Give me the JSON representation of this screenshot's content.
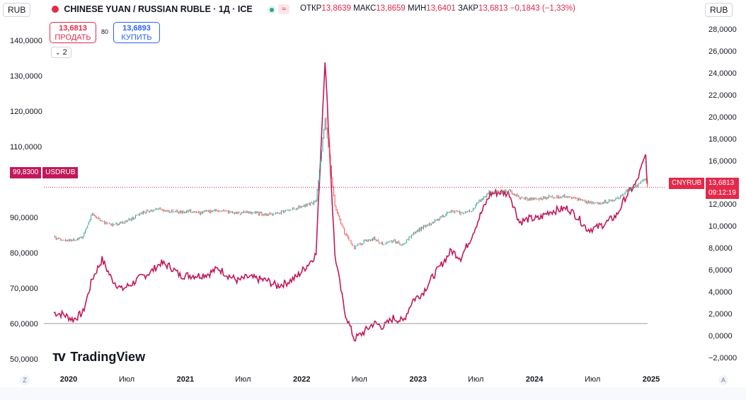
{
  "header": {
    "currency_left": "RUB",
    "symbol": "CHINESE YUAN / RUSSIAN RUBLE · 1Д · ICE",
    "open_label": "ОТКР",
    "open_value": "13,8639",
    "high_label": "МАКС",
    "high_value": "13,8659",
    "low_label": "МИН",
    "low_value": "13,6401",
    "close_label": "ЗАКР",
    "close_value": "13,6813",
    "change_value": "−0,1843 (−1,33%)",
    "currency_right": "RUB"
  },
  "trade": {
    "sell_price": "13,6813",
    "sell_label": "ПРОДАТЬ",
    "spread": "80",
    "buy_price": "13,6893",
    "buy_label": "КУПИТЬ",
    "indicator_count": "2"
  },
  "badges": {
    "usdrub_value": "99,8300",
    "usdrub_symbol": "USDRUB",
    "cnyrub_symbol": "CNYRUB",
    "cnyrub_value": "13,6813",
    "cnyrub_timer": "09:12:19"
  },
  "watermark": "TradingView",
  "footer": {
    "z": "Z",
    "a": "A"
  },
  "chart_data": {
    "type": "line",
    "x_ticks": [
      "2020",
      "Июл",
      "2021",
      "Июл",
      "2022",
      "Июл",
      "2023",
      "Июл",
      "2024",
      "Июл",
      "2025"
    ],
    "left_axis_ticks": [
      "140,0000",
      "130,0000",
      "120,0000",
      "110,0000",
      "90,0000",
      "80,0000",
      "70,0000",
      "60,0000",
      "50,0000"
    ],
    "right_axis_ticks": [
      "28,0000",
      "26,0000",
      "24,0000",
      "22,0000",
      "20,0000",
      "18,0000",
      "16,0000",
      "14,0000",
      "12,0000",
      "10,0000",
      "8,0000",
      "6,0000",
      "4,0000",
      "2,0000",
      "0,0000",
      "−2,0000"
    ],
    "left_axis_range": [
      47,
      143
    ],
    "right_axis_range": [
      -2.5,
      28.5
    ],
    "series": [
      {
        "name": "USDRUB",
        "axis": "left",
        "color": "#c2185b",
        "points": [
          [
            "2019-11",
            63.5
          ],
          [
            "2019-12",
            63.0
          ],
          [
            "2020-01",
            61.5
          ],
          [
            "2020-02",
            63.5
          ],
          [
            "2020-03",
            73.0
          ],
          [
            "2020-04",
            78.5
          ],
          [
            "2020-05",
            73.0
          ],
          [
            "2020-06",
            70.0
          ],
          [
            "2020-07",
            71.5
          ],
          [
            "2020-08",
            73.5
          ],
          [
            "2020-09",
            75.0
          ],
          [
            "2020-10",
            77.5
          ],
          [
            "2020-11",
            76.5
          ],
          [
            "2020-12",
            74.0
          ],
          [
            "2021-01",
            74.0
          ],
          [
            "2021-02",
            74.0
          ],
          [
            "2021-03",
            74.5
          ],
          [
            "2021-04",
            76.0
          ],
          [
            "2021-05",
            74.0
          ],
          [
            "2021-06",
            72.5
          ],
          [
            "2021-07",
            73.5
          ],
          [
            "2021-08",
            73.0
          ],
          [
            "2021-09",
            72.5
          ],
          [
            "2021-10",
            71.0
          ],
          [
            "2021-11",
            72.0
          ],
          [
            "2021-12",
            73.5
          ],
          [
            "2022-01",
            76.5
          ],
          [
            "2022-02",
            80.0
          ],
          [
            "2022-03",
            135.0
          ],
          [
            "2022-04",
            80.0
          ],
          [
            "2022-05",
            64.0
          ],
          [
            "2022-06",
            56.0
          ],
          [
            "2022-07",
            58.0
          ],
          [
            "2022-08",
            60.5
          ],
          [
            "2022-09",
            59.5
          ],
          [
            "2022-10",
            62.0
          ],
          [
            "2022-11",
            61.0
          ],
          [
            "2022-12",
            67.0
          ],
          [
            "2023-01",
            69.0
          ],
          [
            "2023-02",
            73.5
          ],
          [
            "2023-03",
            77.0
          ],
          [
            "2023-04",
            81.0
          ],
          [
            "2023-05",
            79.0
          ],
          [
            "2023-06",
            84.5
          ],
          [
            "2023-07",
            91.0
          ],
          [
            "2023-08",
            97.0
          ],
          [
            "2023-09",
            97.5
          ],
          [
            "2023-10",
            97.0
          ],
          [
            "2023-11",
            89.0
          ],
          [
            "2023-12",
            90.0
          ],
          [
            "2024-01",
            90.0
          ],
          [
            "2024-02",
            92.0
          ],
          [
            "2024-03",
            92.5
          ],
          [
            "2024-04",
            93.0
          ],
          [
            "2024-05",
            90.5
          ],
          [
            "2024-06",
            87.0
          ],
          [
            "2024-07",
            87.5
          ],
          [
            "2024-08",
            89.0
          ],
          [
            "2024-09",
            91.0
          ],
          [
            "2024-10",
            96.5
          ],
          [
            "2024-11",
            100.0
          ],
          [
            "2024-12",
            108.0
          ],
          [
            "2024-12-20",
            99.83
          ]
        ]
      },
      {
        "name": "CNYRUB",
        "axis": "right",
        "color": "#26a69a",
        "points": [
          [
            "2019-11",
            9.1
          ],
          [
            "2019-12",
            8.9
          ],
          [
            "2020-01",
            8.9
          ],
          [
            "2020-02",
            9.2
          ],
          [
            "2020-03",
            11.3
          ],
          [
            "2020-04",
            10.5
          ],
          [
            "2020-05",
            10.2
          ],
          [
            "2020-06",
            10.4
          ],
          [
            "2020-07",
            10.8
          ],
          [
            "2020-08",
            11.3
          ],
          [
            "2020-09",
            11.6
          ],
          [
            "2020-10",
            11.7
          ],
          [
            "2020-11",
            11.5
          ],
          [
            "2020-12",
            11.4
          ],
          [
            "2021-01",
            11.5
          ],
          [
            "2021-02",
            11.3
          ],
          [
            "2021-03",
            11.5
          ],
          [
            "2021-04",
            11.6
          ],
          [
            "2021-05",
            11.4
          ],
          [
            "2021-06",
            11.3
          ],
          [
            "2021-07",
            11.4
          ],
          [
            "2021-08",
            11.3
          ],
          [
            "2021-09",
            11.2
          ],
          [
            "2021-10",
            11.3
          ],
          [
            "2021-11",
            11.6
          ],
          [
            "2021-12",
            11.8
          ],
          [
            "2022-01",
            12.0
          ],
          [
            "2022-02",
            12.4
          ],
          [
            "2022-03",
            20.0
          ],
          [
            "2022-04",
            12.0
          ],
          [
            "2022-05",
            9.5
          ],
          [
            "2022-06",
            8.2
          ],
          [
            "2022-07",
            8.7
          ],
          [
            "2022-08",
            9.0
          ],
          [
            "2022-09",
            8.4
          ],
          [
            "2022-10",
            8.8
          ],
          [
            "2022-11",
            8.4
          ],
          [
            "2022-12",
            9.5
          ],
          [
            "2023-01",
            10.0
          ],
          [
            "2023-02",
            10.4
          ],
          [
            "2023-03",
            11.0
          ],
          [
            "2023-04",
            11.5
          ],
          [
            "2023-05",
            11.3
          ],
          [
            "2023-06",
            11.5
          ],
          [
            "2023-07",
            12.5
          ],
          [
            "2023-08",
            13.3
          ],
          [
            "2023-09",
            13.2
          ],
          [
            "2023-10",
            13.3
          ],
          [
            "2023-11",
            12.7
          ],
          [
            "2023-12",
            12.6
          ],
          [
            "2024-01",
            12.6
          ],
          [
            "2024-02",
            12.8
          ],
          [
            "2024-03",
            12.8
          ],
          [
            "2024-04",
            12.9
          ],
          [
            "2024-05",
            12.6
          ],
          [
            "2024-06",
            12.3
          ],
          [
            "2024-07",
            12.2
          ],
          [
            "2024-08",
            12.4
          ],
          [
            "2024-09",
            12.6
          ],
          [
            "2024-10",
            13.3
          ],
          [
            "2024-11",
            13.8
          ],
          [
            "2024-12",
            14.5
          ],
          [
            "2024-12-20",
            13.6813
          ]
        ]
      }
    ],
    "grid": false
  },
  "colors": {
    "usdrub": "#c2185b",
    "cnyrub_up": "#26a69a",
    "cnyrub_down": "#ef5350",
    "sell": "#e5294a",
    "buy": "#2962ff",
    "cnyrub_badge": "#e5294a",
    "usdrub_badge": "#c2185b"
  }
}
